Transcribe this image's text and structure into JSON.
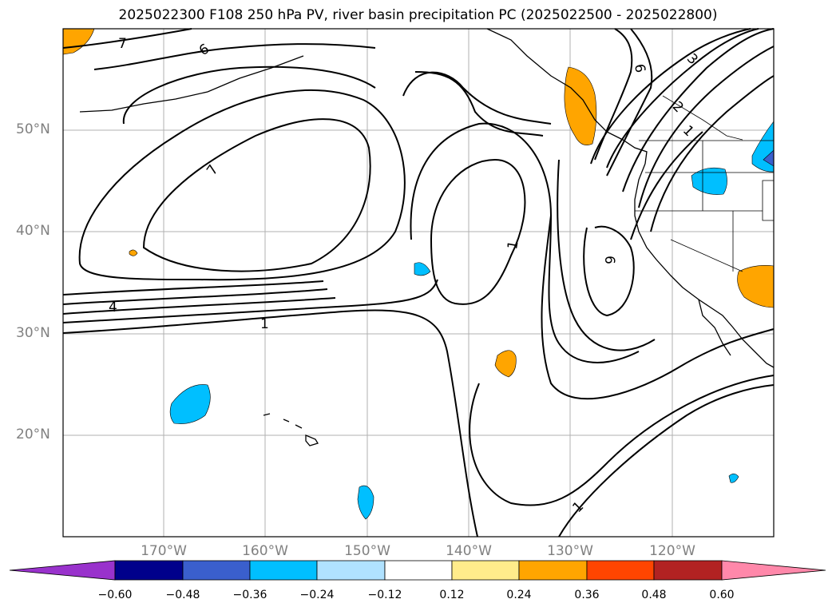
{
  "title": "2025022300 F108 250 hPa PV, river basin precipitation PC (2025022500 - 2025022800)",
  "map": {
    "lat_labels": [
      "50°N",
      "40°N",
      "30°N",
      "20°N"
    ],
    "lon_labels": [
      "170°W",
      "160°W",
      "150°W",
      "140°W",
      "130°W",
      "120°W"
    ],
    "contour_labels": [
      {
        "id": "7-nw",
        "text": "7"
      },
      {
        "id": "6-n",
        "text": "6"
      },
      {
        "id": "7-c",
        "text": "7"
      },
      {
        "id": "4-w",
        "text": "4"
      },
      {
        "id": "1-w",
        "text": "1"
      },
      {
        "id": "1-c",
        "text": "1"
      },
      {
        "id": "6-e",
        "text": "6"
      },
      {
        "id": "6-ne",
        "text": "6"
      },
      {
        "id": "3-ne",
        "text": "3"
      },
      {
        "id": "2-ne",
        "text": "2"
      },
      {
        "id": "1-ne",
        "text": "1"
      },
      {
        "id": "1-s",
        "text": "1"
      }
    ]
  },
  "colorbar": {
    "ticks": [
      "−0.60",
      "−0.48",
      "−0.36",
      "−0.24",
      "−0.12",
      "0.12",
      "0.24",
      "0.36",
      "0.48",
      "0.60"
    ],
    "colors": [
      "#9932cc",
      "#00008b",
      "#3a5fcd",
      "#00bfff",
      "#b0e2ff",
      "#ffffff",
      "#ffec8b",
      "#ffa500",
      "#ff4500",
      "#b22222",
      "#ff88aa"
    ]
  },
  "colors": {
    "grid": "#b0b0b0",
    "contour": "#000000",
    "tick_label": "#808080"
  }
}
